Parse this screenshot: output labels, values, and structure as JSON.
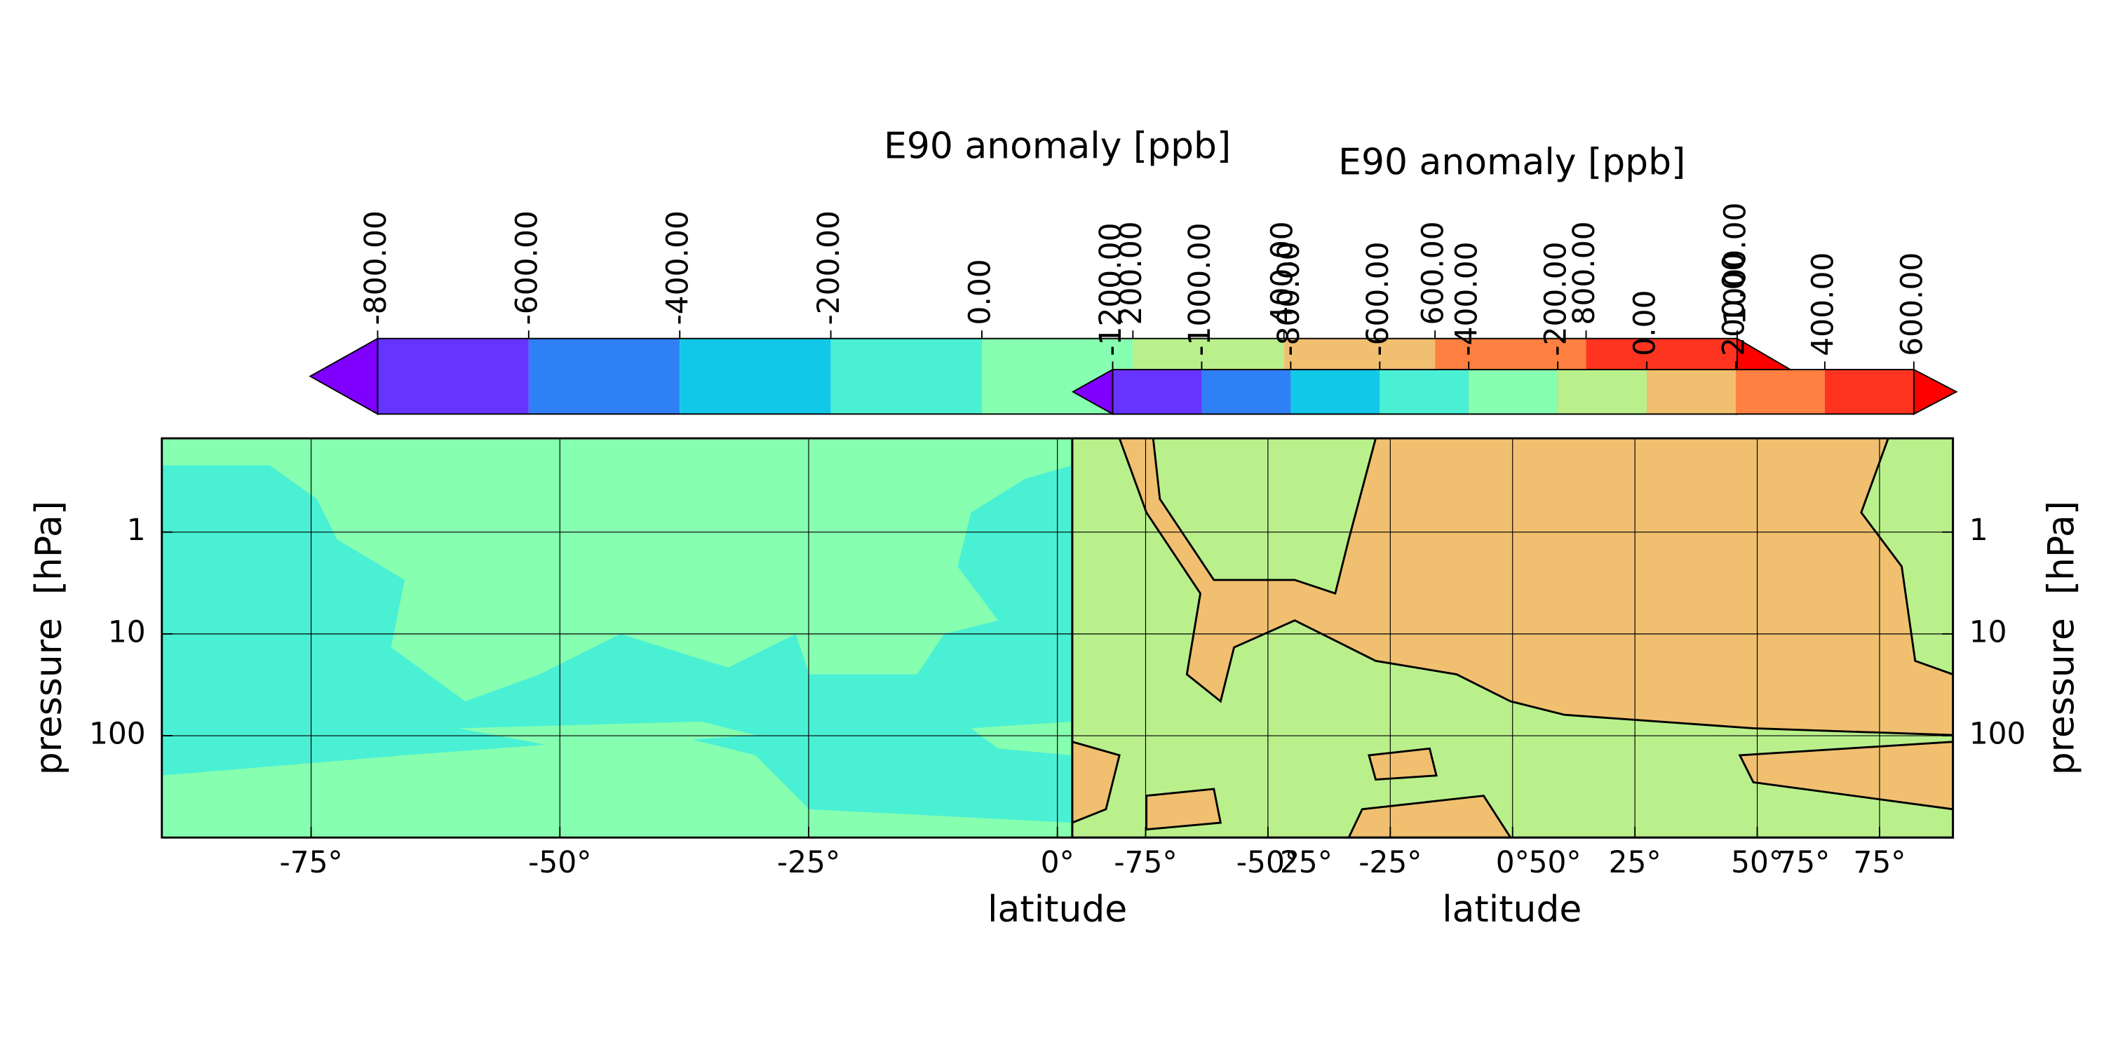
{
  "chart_data": [
    {
      "type": "contour",
      "colorbar_label": "E90 anomaly [ppb]",
      "xlabel": "latitude",
      "ylabel": "pressure  [hPa]",
      "levels": [
        {
          "value": -800,
          "label": "-800.00"
        },
        {
          "value": -600,
          "label": "-600.00"
        },
        {
          "value": -400,
          "label": "-400.00"
        },
        {
          "value": -200,
          "label": "-200.00"
        },
        {
          "value": 0,
          "label": "0.00"
        },
        {
          "value": 200,
          "label": "200.00"
        },
        {
          "value": 400,
          "label": "400.00"
        },
        {
          "value": 600,
          "label": "600.00"
        },
        {
          "value": 800,
          "label": "800.00"
        },
        {
          "value": 1000,
          "label": "1000.00"
        }
      ],
      "colors": [
        "#8000ff",
        "#6633ff",
        "#3080f5",
        "#12c8e8",
        "#4af0d4",
        "#86ffb0",
        "#baf08c",
        "#f0c070",
        "#ff8040",
        "#ff3420",
        "#ff0000"
      ],
      "extend": "both",
      "xlim": [
        -90,
        90
      ],
      "xticks": [
        {
          "value": -75,
          "label": "-75°"
        },
        {
          "value": -50,
          "label": "-50°"
        },
        {
          "value": -25,
          "label": "-25°"
        },
        {
          "value": 0,
          "label": "0°"
        },
        {
          "value": 25,
          "label": "25°"
        },
        {
          "value": 50,
          "label": "50°"
        },
        {
          "value": 75,
          "label": "75°"
        }
      ],
      "ylim": [
        1000,
        0.12
      ],
      "yticks": [
        1,
        10,
        100
      ],
      "log_y": true,
      "grid": true,
      "ylabel_side": "left"
    },
    {
      "type": "contour",
      "colorbar_label": "E90 anomaly [ppb]",
      "xlabel": "latitude",
      "ylabel": "pressure  [hPa]",
      "levels": [
        {
          "value": -1200,
          "label": "-1200.00"
        },
        {
          "value": -1000,
          "label": "-1000.00"
        },
        {
          "value": -800,
          "label": "-800.00"
        },
        {
          "value": -600,
          "label": "-600.00"
        },
        {
          "value": -400,
          "label": "-400.00"
        },
        {
          "value": -200,
          "label": "-200.00"
        },
        {
          "value": 0,
          "label": "0.00"
        },
        {
          "value": 200,
          "label": "200.00"
        },
        {
          "value": 400,
          "label": "400.00"
        },
        {
          "value": 600,
          "label": "600.00"
        }
      ],
      "colors": [
        "#8000ff",
        "#6633ff",
        "#3080f5",
        "#12c8e8",
        "#4af0d4",
        "#86ffb0",
        "#baf08c",
        "#f0c070",
        "#ff8040",
        "#ff3420",
        "#ff0000"
      ],
      "extend": "both",
      "xlim": [
        -90,
        90
      ],
      "xticks": [
        {
          "value": -75,
          "label": "-75°"
        },
        {
          "value": -50,
          "label": "-50°"
        },
        {
          "value": -25,
          "label": "-25°"
        },
        {
          "value": 0,
          "label": "0°"
        },
        {
          "value": 25,
          "label": "25°"
        },
        {
          "value": 50,
          "label": "50°"
        },
        {
          "value": 75,
          "label": "75°"
        }
      ],
      "ylim": [
        1000,
        0.12
      ],
      "yticks": [
        1,
        10,
        100
      ],
      "log_y": true,
      "grid": true,
      "ylabel_side": "right"
    }
  ]
}
